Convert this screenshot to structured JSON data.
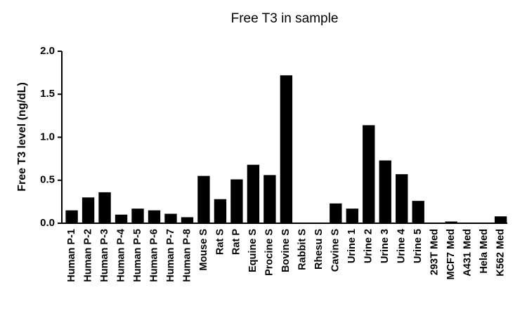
{
  "chart_data": {
    "type": "bar",
    "title": "Free T3 in sample",
    "y_label": "Free T3 level (ng/dL)",
    "categories": [
      "Human P-1",
      "Human P-2",
      "Human P-3",
      "Human P-4",
      "Human P-5",
      "Human P-6",
      "Human P-7",
      "Human P-8",
      "Mouse S",
      "Rat S",
      "Rat P",
      "Equine S",
      "Procine S",
      "Bovine S",
      "Rabbit S",
      "Rhesu S",
      "Cavine S",
      "Urine 1",
      "Urine 2",
      "Urine 3",
      "Urine 4",
      "Urine 5",
      "293T Med",
      "MCF7 Med",
      "A431 Med",
      "Hela Med",
      "K562 Med"
    ],
    "values": [
      0.15,
      0.3,
      0.36,
      0.1,
      0.17,
      0.15,
      0.11,
      0.07,
      0.55,
      0.28,
      0.51,
      0.68,
      0.56,
      1.72,
      0,
      0,
      0.23,
      0.17,
      1.14,
      0.73,
      0.57,
      0.26,
      0,
      0.02,
      0,
      0,
      0.08
    ],
    "color": "#000000",
    "ylim": [
      0,
      2.0
    ],
    "yticks": [
      {
        "value": 0,
        "label": "0.0"
      },
      {
        "value": 0.5,
        "label": "0.5"
      },
      {
        "value": 1.0,
        "label": "1.0"
      },
      {
        "value": 1.5,
        "label": "1.5"
      },
      {
        "value": 2.0,
        "label": "2.0"
      }
    ]
  }
}
